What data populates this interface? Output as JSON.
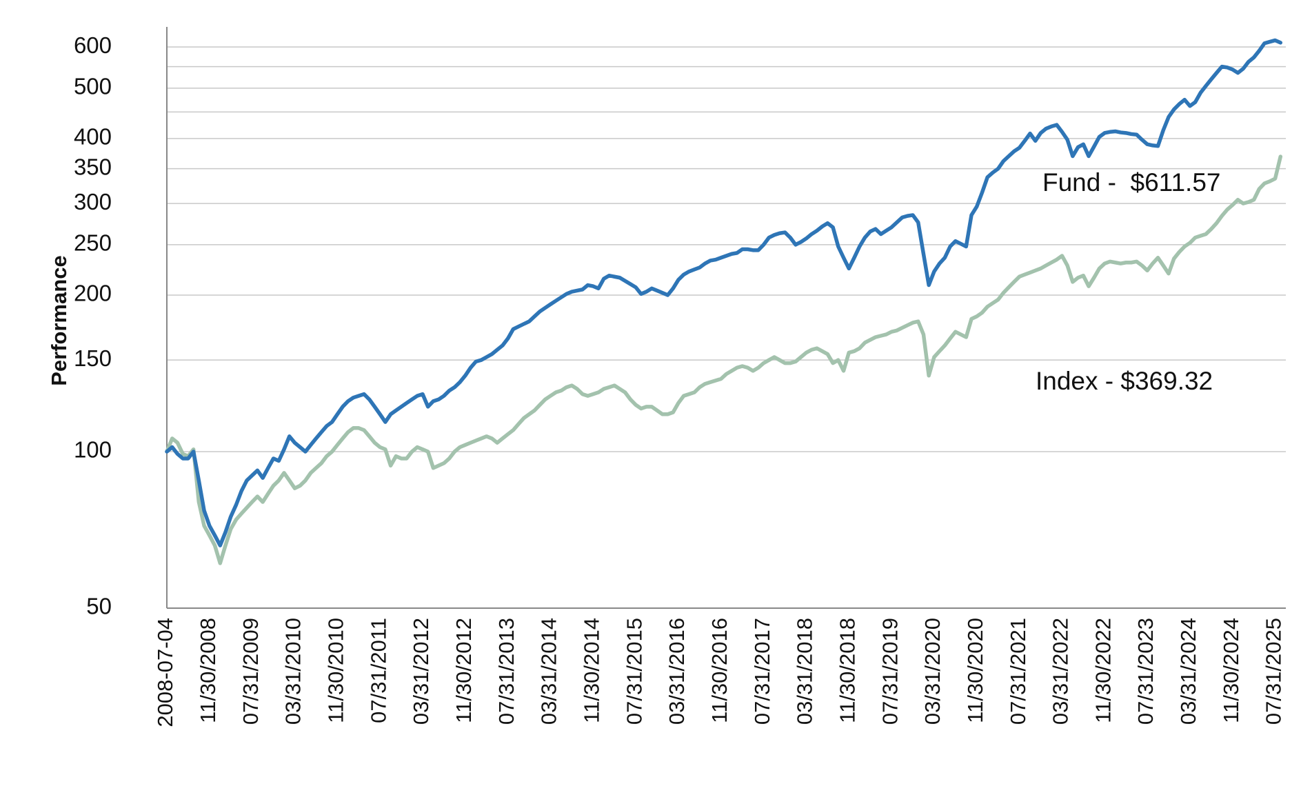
{
  "chart_data": {
    "type": "line",
    "y_label": "Performance",
    "log_y": true,
    "grid": true,
    "ylim": [
      50,
      640
    ],
    "yticks": [
      50,
      100,
      150,
      200,
      250,
      300,
      350,
      400,
      500,
      600
    ],
    "minor_yticks": [
      450,
      550
    ],
    "categories": [
      "2008-07-04",
      null,
      null,
      null,
      null,
      null,
      null,
      null,
      "11/30/2008",
      null,
      null,
      null,
      null,
      null,
      null,
      null,
      "07/31/2009",
      null,
      null,
      null,
      null,
      null,
      null,
      null,
      "03/31/2010",
      null,
      null,
      null,
      null,
      null,
      null,
      null,
      "11/30/2010",
      null,
      null,
      null,
      null,
      null,
      null,
      null,
      "07/31/2011",
      null,
      null,
      null,
      null,
      null,
      null,
      null,
      "03/31/2012",
      null,
      null,
      null,
      null,
      null,
      null,
      null,
      "11/30/2012",
      null,
      null,
      null,
      null,
      null,
      null,
      null,
      "07/31/2013",
      null,
      null,
      null,
      null,
      null,
      null,
      null,
      "03/31/2014",
      null,
      null,
      null,
      null,
      null,
      null,
      null,
      "11/30/2014",
      null,
      null,
      null,
      null,
      null,
      null,
      null,
      "07/31/2015",
      null,
      null,
      null,
      null,
      null,
      null,
      null,
      "03/31/2016",
      null,
      null,
      null,
      null,
      null,
      null,
      null,
      "11/30/2016",
      null,
      null,
      null,
      null,
      null,
      null,
      null,
      "07/31/2017",
      null,
      null,
      null,
      null,
      null,
      null,
      null,
      "03/31/2018",
      null,
      null,
      null,
      null,
      null,
      null,
      null,
      "11/30/2018",
      null,
      null,
      null,
      null,
      null,
      null,
      null,
      "07/31/2019",
      null,
      null,
      null,
      null,
      null,
      null,
      null,
      "03/31/2020",
      null,
      null,
      null,
      null,
      null,
      null,
      null,
      "11/30/2020",
      null,
      null,
      null,
      null,
      null,
      null,
      null,
      "07/31/2021",
      null,
      null,
      null,
      null,
      null,
      null,
      null,
      "03/31/2022",
      null,
      null,
      null,
      null,
      null,
      null,
      null,
      "11/30/2022",
      null,
      null,
      null,
      null,
      null,
      null,
      null,
      "07/31/2023",
      null,
      null,
      null,
      null,
      null,
      null,
      null,
      "03/31/2024",
      null,
      null,
      null,
      null,
      null,
      null,
      null,
      "11/30/2024",
      null,
      null,
      null,
      null,
      null,
      null,
      null,
      "07/31/2025",
      null
    ],
    "series": [
      {
        "name": "Fund",
        "color": "#2e75b6",
        "values": [
          100,
          102,
          99,
          97,
          97,
          100,
          88,
          77,
          72,
          69,
          66,
          70,
          75,
          79,
          84,
          88,
          90,
          92,
          89,
          93,
          97,
          96,
          101,
          107,
          104,
          102,
          100,
          103,
          106,
          109,
          112,
          114,
          118,
          122,
          125,
          127,
          128,
          129,
          126,
          122,
          118,
          114,
          118,
          120,
          122,
          124,
          126,
          128,
          129,
          122,
          125,
          126,
          128,
          131,
          133,
          136,
          140,
          145,
          149,
          150,
          152,
          154,
          157,
          160,
          165,
          172,
          174,
          176,
          178,
          182,
          186,
          189,
          192,
          195,
          198,
          201,
          203,
          204,
          205,
          209,
          208,
          206,
          215,
          218,
          217,
          216,
          213,
          210,
          207,
          201,
          203,
          206,
          204,
          202,
          200,
          206,
          214,
          219,
          222,
          224,
          226,
          230,
          233,
          234,
          236,
          238,
          240,
          241,
          245,
          245,
          244,
          244,
          250,
          258,
          261,
          263,
          264,
          258,
          250,
          253,
          257,
          262,
          266,
          271,
          275,
          270,
          248,
          236,
          225,
          236,
          248,
          258,
          265,
          268,
          262,
          266,
          270,
          276,
          282,
          284,
          285,
          276,
          240,
          209,
          222,
          230,
          236,
          248,
          254,
          251,
          248,
          285,
          296,
          315,
          337,
          344,
          350,
          362,
          370,
          378,
          384,
          396,
          409,
          396,
          410,
          418,
          422,
          425,
          412,
          398,
          370,
          385,
          390,
          370,
          386,
          403,
          410,
          412,
          413,
          411,
          410,
          408,
          407,
          398,
          390,
          388,
          387,
          415,
          440,
          455,
          466,
          475,
          462,
          470,
          490,
          505,
          520,
          535,
          550,
          548,
          543,
          535,
          545,
          562,
          573,
          590,
          610,
          614,
          618,
          611.57
        ]
      },
      {
        "name": "Index",
        "color": "#a3c2ad",
        "values": [
          100,
          106,
          104,
          99,
          98,
          101,
          80,
          72,
          69,
          66,
          61,
          66,
          71,
          74,
          76,
          78,
          80,
          82,
          80,
          83,
          86,
          88,
          91,
          88,
          85,
          86,
          88,
          91,
          93,
          95,
          98,
          100,
          103,
          106,
          109,
          111,
          111,
          110,
          107,
          104,
          102,
          101,
          94,
          98,
          97,
          97,
          100,
          102,
          101,
          100,
          93,
          94,
          95,
          97,
          100,
          102,
          103,
          104,
          105,
          106,
          107,
          106,
          104,
          106,
          108,
          110,
          113,
          116,
          118,
          120,
          123,
          126,
          128,
          130,
          131,
          133,
          134,
          132,
          129,
          128,
          129,
          130,
          132,
          133,
          134,
          132,
          130,
          126,
          123,
          121,
          122,
          122,
          120,
          118,
          118,
          119,
          124,
          128,
          129,
          130,
          133,
          135,
          136,
          137,
          138,
          141,
          143,
          145,
          146,
          145,
          143,
          145,
          148,
          150,
          152,
          150,
          148,
          148,
          149,
          152,
          155,
          157,
          158,
          156,
          154,
          148,
          150,
          143,
          155,
          156,
          158,
          162,
          164,
          166,
          167,
          168,
          170,
          171,
          173,
          175,
          177,
          178,
          168,
          140,
          152,
          156,
          160,
          165,
          170,
          168,
          166,
          180,
          182,
          185,
          190,
          193,
          196,
          202,
          207,
          212,
          217,
          219,
          221,
          223,
          225,
          228,
          231,
          234,
          238,
          228,
          212,
          216,
          218,
          208,
          216,
          225,
          230,
          232,
          231,
          230,
          231,
          231,
          232,
          228,
          223,
          230,
          236,
          228,
          220,
          235,
          242,
          248,
          252,
          258,
          260,
          262,
          268,
          275,
          284,
          292,
          298,
          305,
          300,
          302,
          305,
          320,
          328,
          331,
          335,
          369.32
        ]
      }
    ],
    "annotations": [
      "Fund -  $611.57",
      "Index - $369.32"
    ]
  }
}
